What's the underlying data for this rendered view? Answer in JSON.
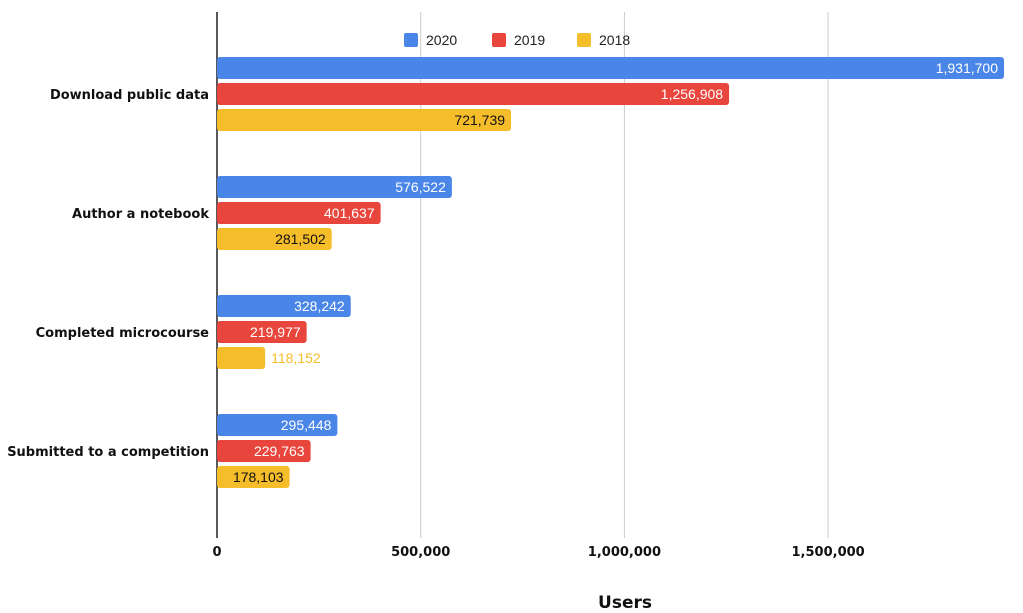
{
  "chart_data": {
    "type": "bar",
    "orientation": "horizontal",
    "title": "",
    "xlabel": "Users",
    "ylabel": "",
    "xlim": [
      0,
      1931700
    ],
    "x_ticks": [
      0,
      500000,
      1000000,
      1500000
    ],
    "x_tick_labels": [
      "0",
      "500,000",
      "1,000,000",
      "1,500,000"
    ],
    "grid": "vertical",
    "legend_position": "top",
    "categories": [
      "Download public data",
      "Author a notebook",
      "Completed microcourse",
      "Submitted to a competition"
    ],
    "series": [
      {
        "name": "2020",
        "color": "#4a86e8",
        "values": [
          1931700,
          576522,
          328242,
          295448
        ],
        "labels": [
          "1,931,700",
          "576,522",
          "328,242",
          "295,448"
        ]
      },
      {
        "name": "2019",
        "color": "#e8453c",
        "values": [
          1256908,
          401637,
          219977,
          229763
        ],
        "labels": [
          "1,256,908",
          "401,637",
          "219,977",
          "229,763"
        ]
      },
      {
        "name": "2018",
        "color": "#f6bd2b",
        "values": [
          721739,
          281502,
          118152,
          178103
        ],
        "labels": [
          "721,739",
          "281,502",
          "118,152",
          "178,103"
        ]
      }
    ]
  }
}
